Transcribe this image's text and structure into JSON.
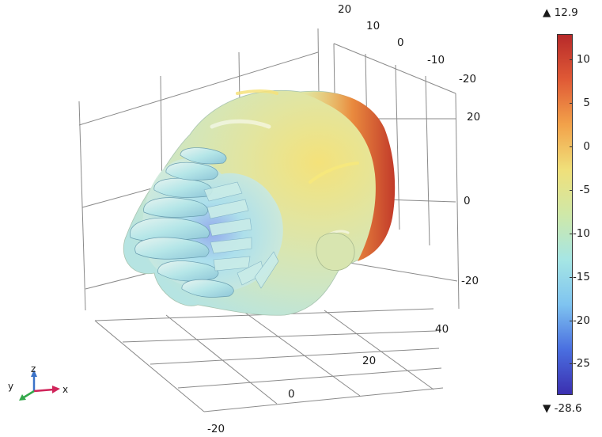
{
  "plot": {
    "axis_ticks": {
      "top_axis": [
        "20",
        "10",
        "0",
        "-10",
        "-20"
      ],
      "right_axis": [
        "20",
        "0",
        "-20"
      ],
      "bottom_right_axis": [
        "40",
        "20",
        "0",
        "-20"
      ]
    },
    "triad": {
      "x_label": "x",
      "y_label": "y",
      "z_label": "z"
    }
  },
  "colorbar": {
    "max_label": "▲ 12.9",
    "min_label": "▼ -28.6",
    "max_value": 12.9,
    "min_value": -28.6,
    "ticks": [
      "10",
      "5",
      "0",
      "-5",
      "-10",
      "-15",
      "-20",
      "-25"
    ],
    "tick_values": [
      10,
      5,
      0,
      -5,
      -10,
      -15,
      -20,
      -25
    ],
    "colormap": [
      "#3b2fb0",
      "#4a6fe0",
      "#7fc4f0",
      "#a6e6e4",
      "#cfe8a8",
      "#f0e07a",
      "#f2a24a",
      "#e05a36",
      "#b72a2a"
    ]
  }
}
